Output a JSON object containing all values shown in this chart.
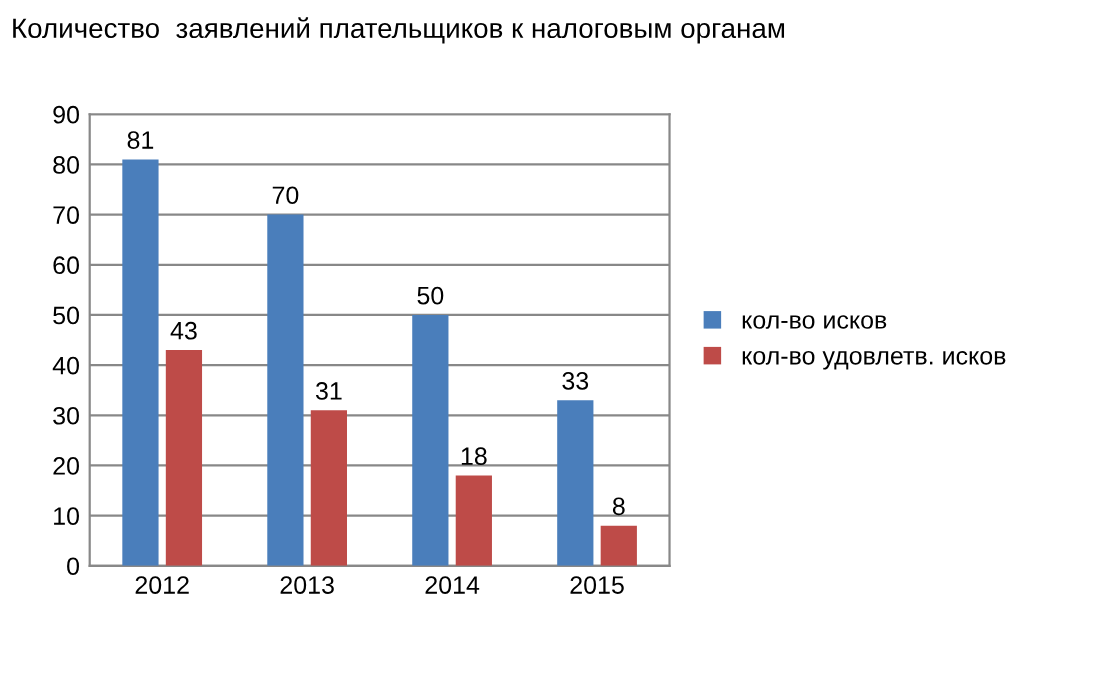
{
  "chart_data": {
    "type": "bar",
    "title": "Количество  заявлений плательщиков к налоговым органам",
    "categories": [
      "2012",
      "2013",
      "2014",
      "2015"
    ],
    "series": [
      {
        "name": "кол-во исков",
        "color": "#4a7ebb",
        "values": [
          81,
          70,
          50,
          33
        ]
      },
      {
        "name": "кол-во удовлетв. исков",
        "color": "#be4b48",
        "values": [
          43,
          31,
          18,
          8
        ]
      }
    ],
    "ylim": [
      0,
      90
    ],
    "yticks": [
      0,
      10,
      20,
      30,
      40,
      50,
      60,
      70,
      80,
      90
    ],
    "grid": "y",
    "legend": "right",
    "data_labels": true
  }
}
